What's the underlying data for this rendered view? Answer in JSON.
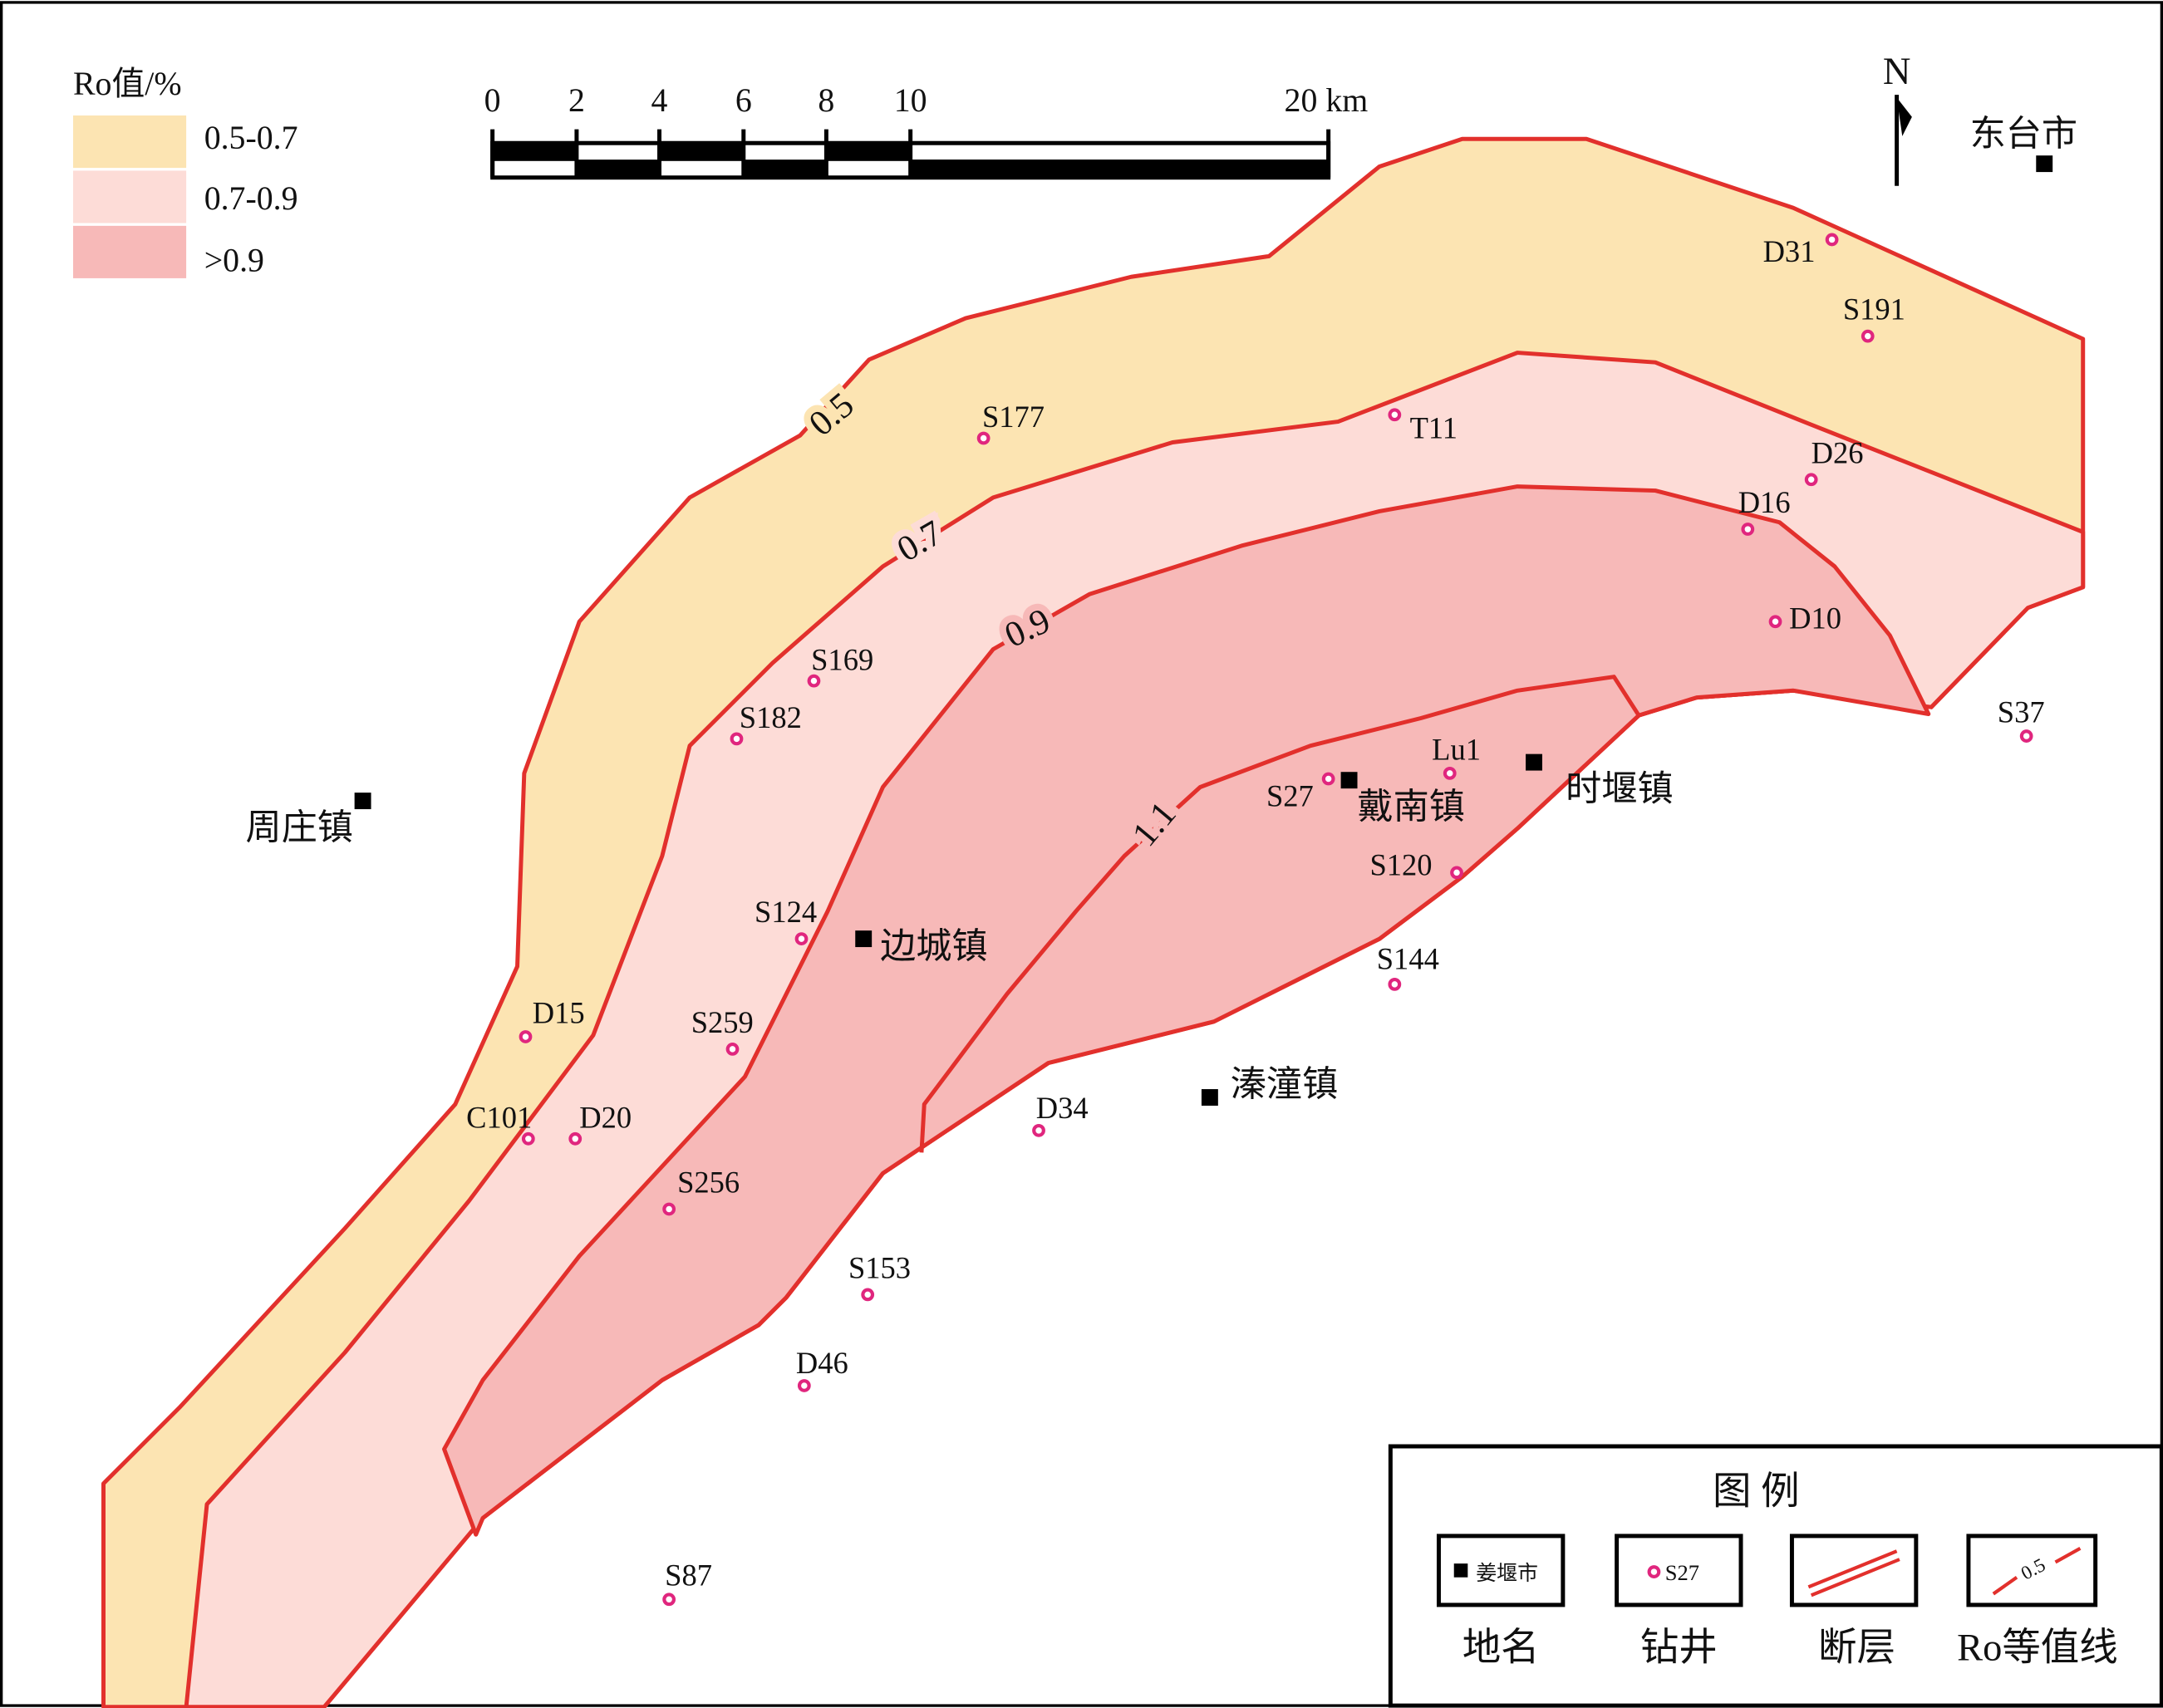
{
  "legend_ro": {
    "title": "Ro值/%",
    "items": [
      "0.5-0.7",
      "0.7-0.9",
      ">0.9"
    ]
  },
  "scale_bar": {
    "ticks": [
      "0",
      "2",
      "4",
      "6",
      "8",
      "10",
      "20 km"
    ]
  },
  "north": "N",
  "towns": [
    "东台市",
    "周庄镇",
    "边城镇",
    "戴南镇",
    "时堰镇",
    "溱潼镇"
  ],
  "wells": [
    "D31",
    "S191",
    "S177",
    "T11",
    "D26",
    "D16",
    "D10",
    "S169",
    "S182",
    "S37",
    "Lu1",
    "S27",
    "S120",
    "S124",
    "S144",
    "D15",
    "S259",
    "C101",
    "D20",
    "D34",
    "S256",
    "S153",
    "D46",
    "S87"
  ],
  "contours": [
    "0.5",
    "0.7",
    "0.9",
    "1.1"
  ],
  "key": {
    "title": "图 例",
    "items": [
      {
        "sample": "姜堰市",
        "label": "地名"
      },
      {
        "sample": "S27",
        "label": "钻井"
      },
      {
        "label": "断层"
      },
      {
        "sample": "0.5",
        "label": "Ro等值线"
      }
    ]
  }
}
